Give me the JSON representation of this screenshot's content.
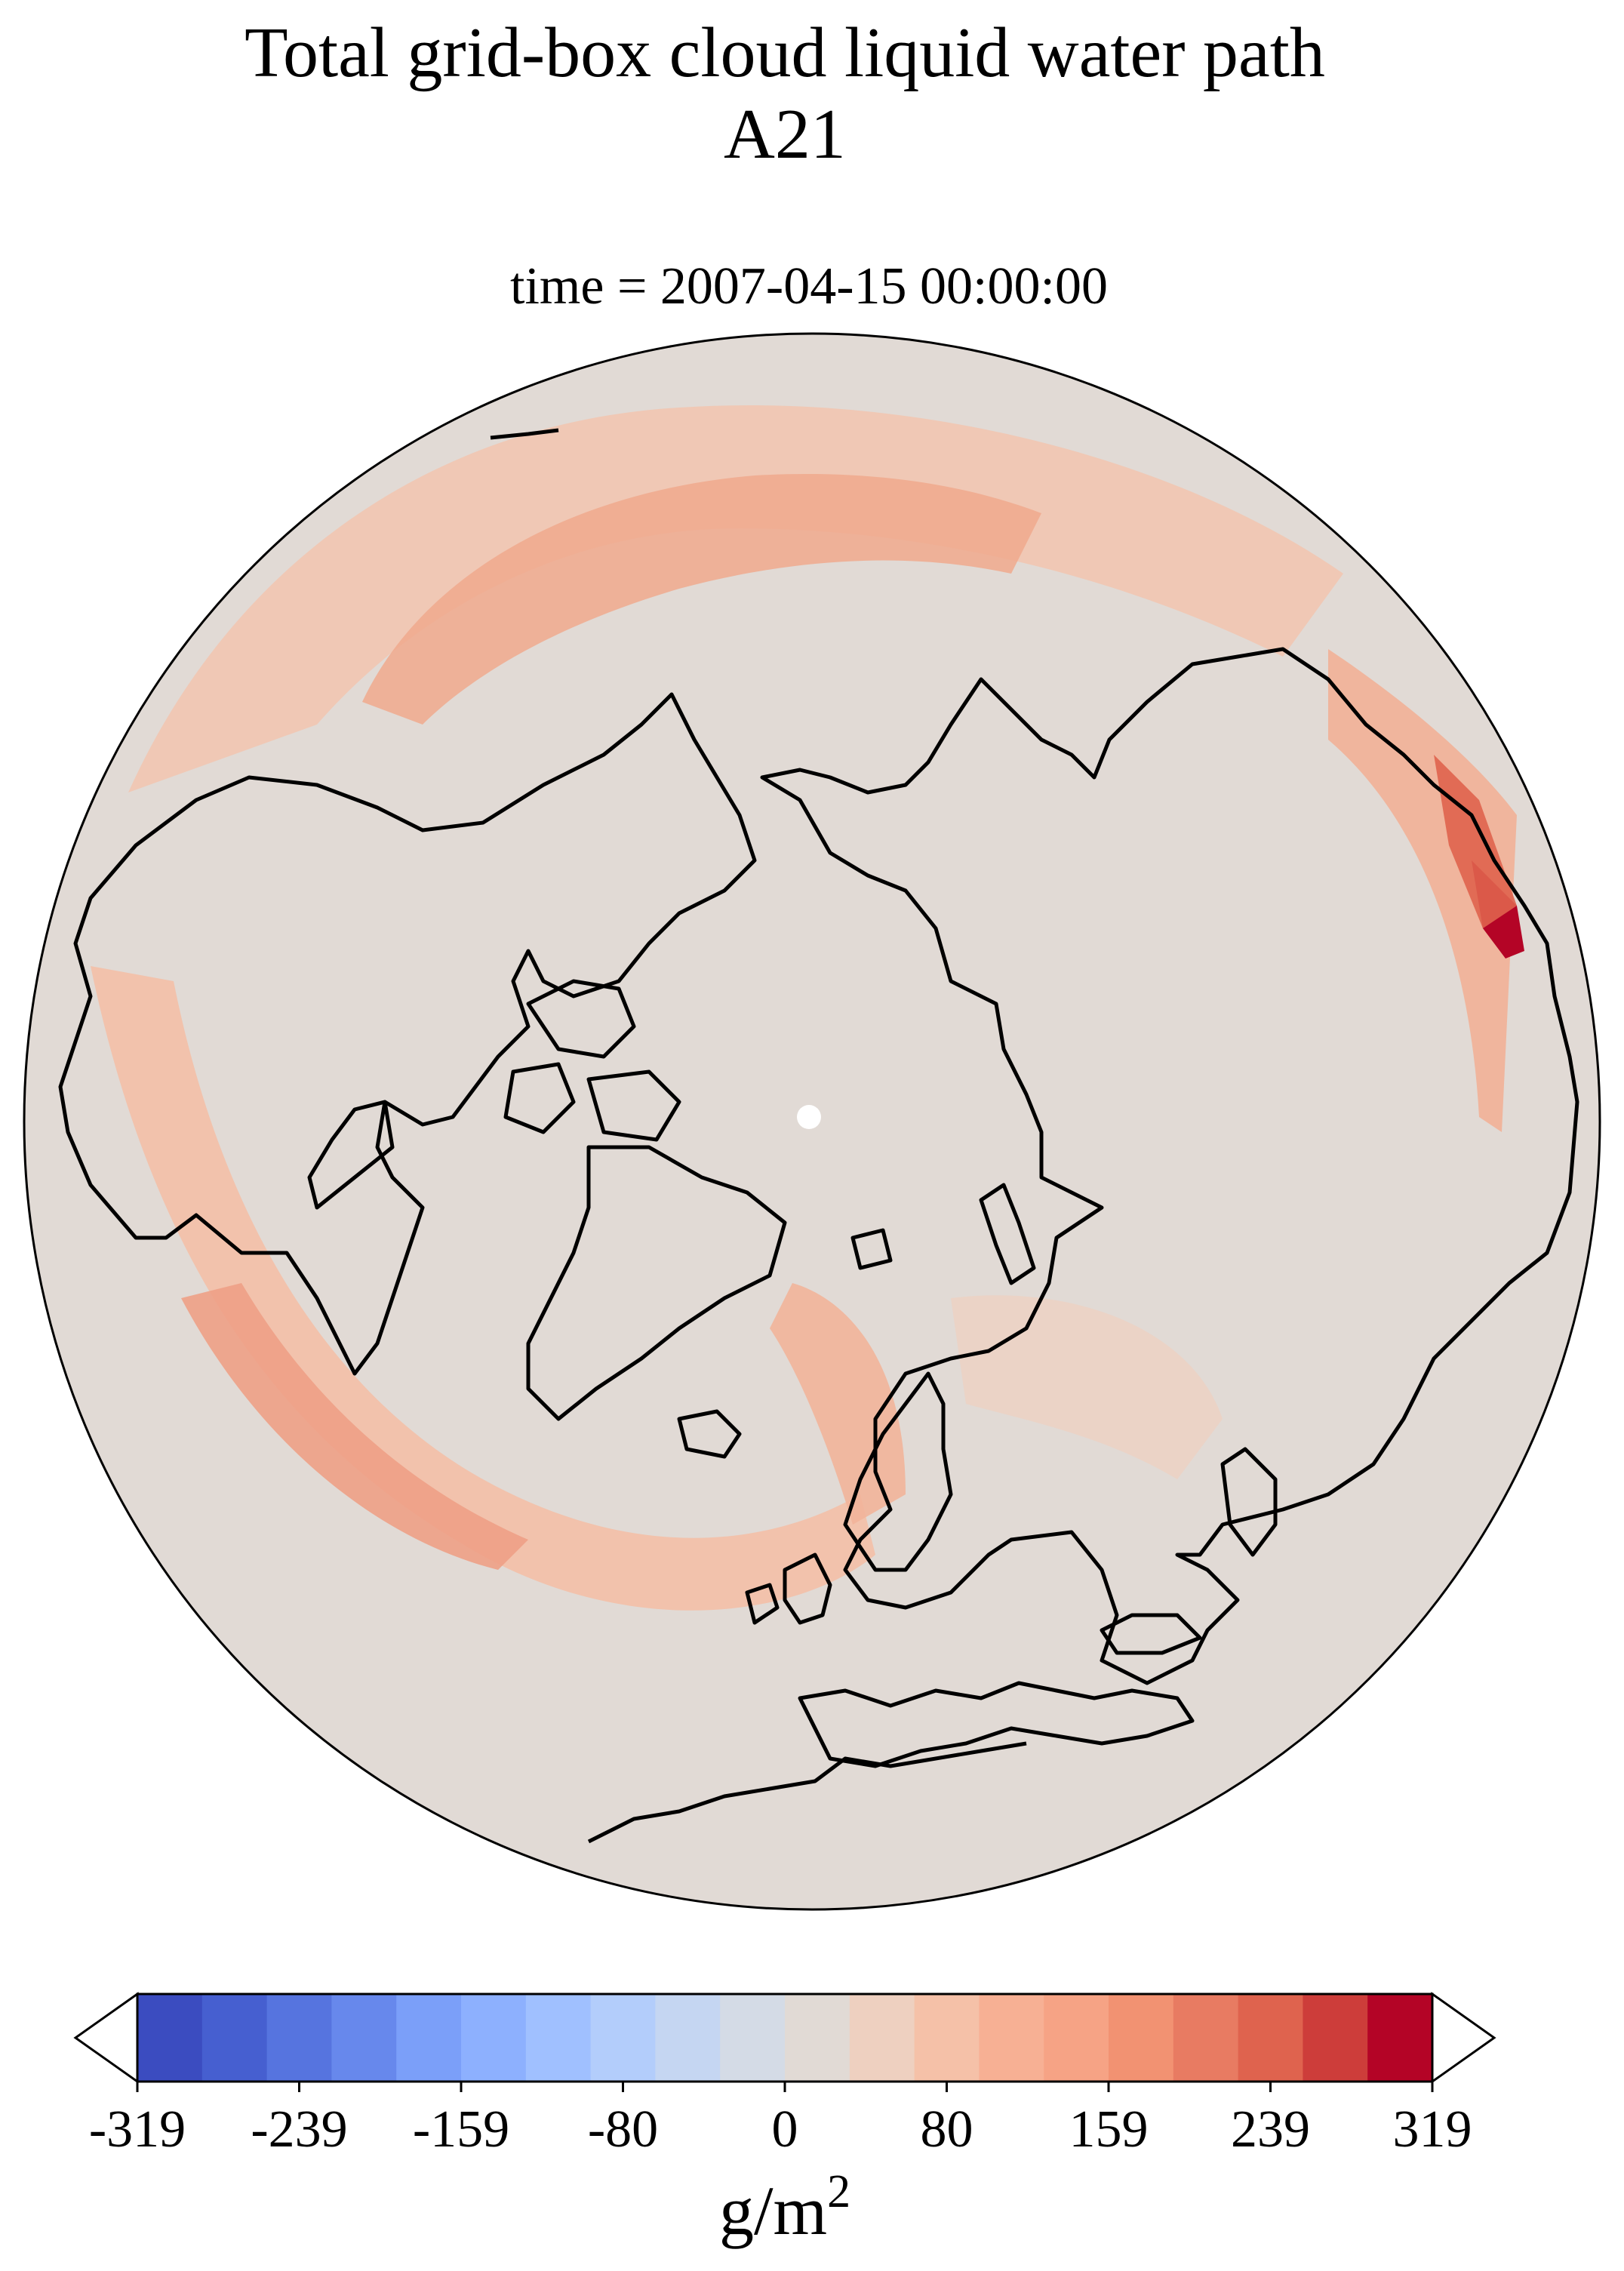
{
  "title": {
    "line1": "Total grid-box cloud liquid water path",
    "line2": "A21"
  },
  "subtitle": "time = 2007-04-15 00:00:00",
  "map": {
    "projection": "orthographic",
    "center": "North Pole",
    "background_color": "#e1dad5",
    "pole_marker_color": "#ffffff"
  },
  "colorbar": {
    "label_base": "g/m",
    "label_exponent": "2",
    "tick_labels": [
      "-319",
      "-239",
      "-159",
      "-80",
      "0",
      "80",
      "159",
      "239",
      "319"
    ],
    "extend": "both",
    "range": [
      -319,
      319
    ],
    "colors": [
      "#3b4cc0",
      "#465fd0",
      "#5674df",
      "#6788ec",
      "#7b9ff9",
      "#8db0fe",
      "#a0c0ff",
      "#b3cdfb",
      "#c5d6f2",
      "#d4dbe6",
      "#e1dad5",
      "#eed0c0",
      "#f5c1a8",
      "#f7b094",
      "#f6a385",
      "#f29272",
      "#e87b62",
      "#df634e",
      "#cd3d3a",
      "#b40426"
    ]
  }
}
